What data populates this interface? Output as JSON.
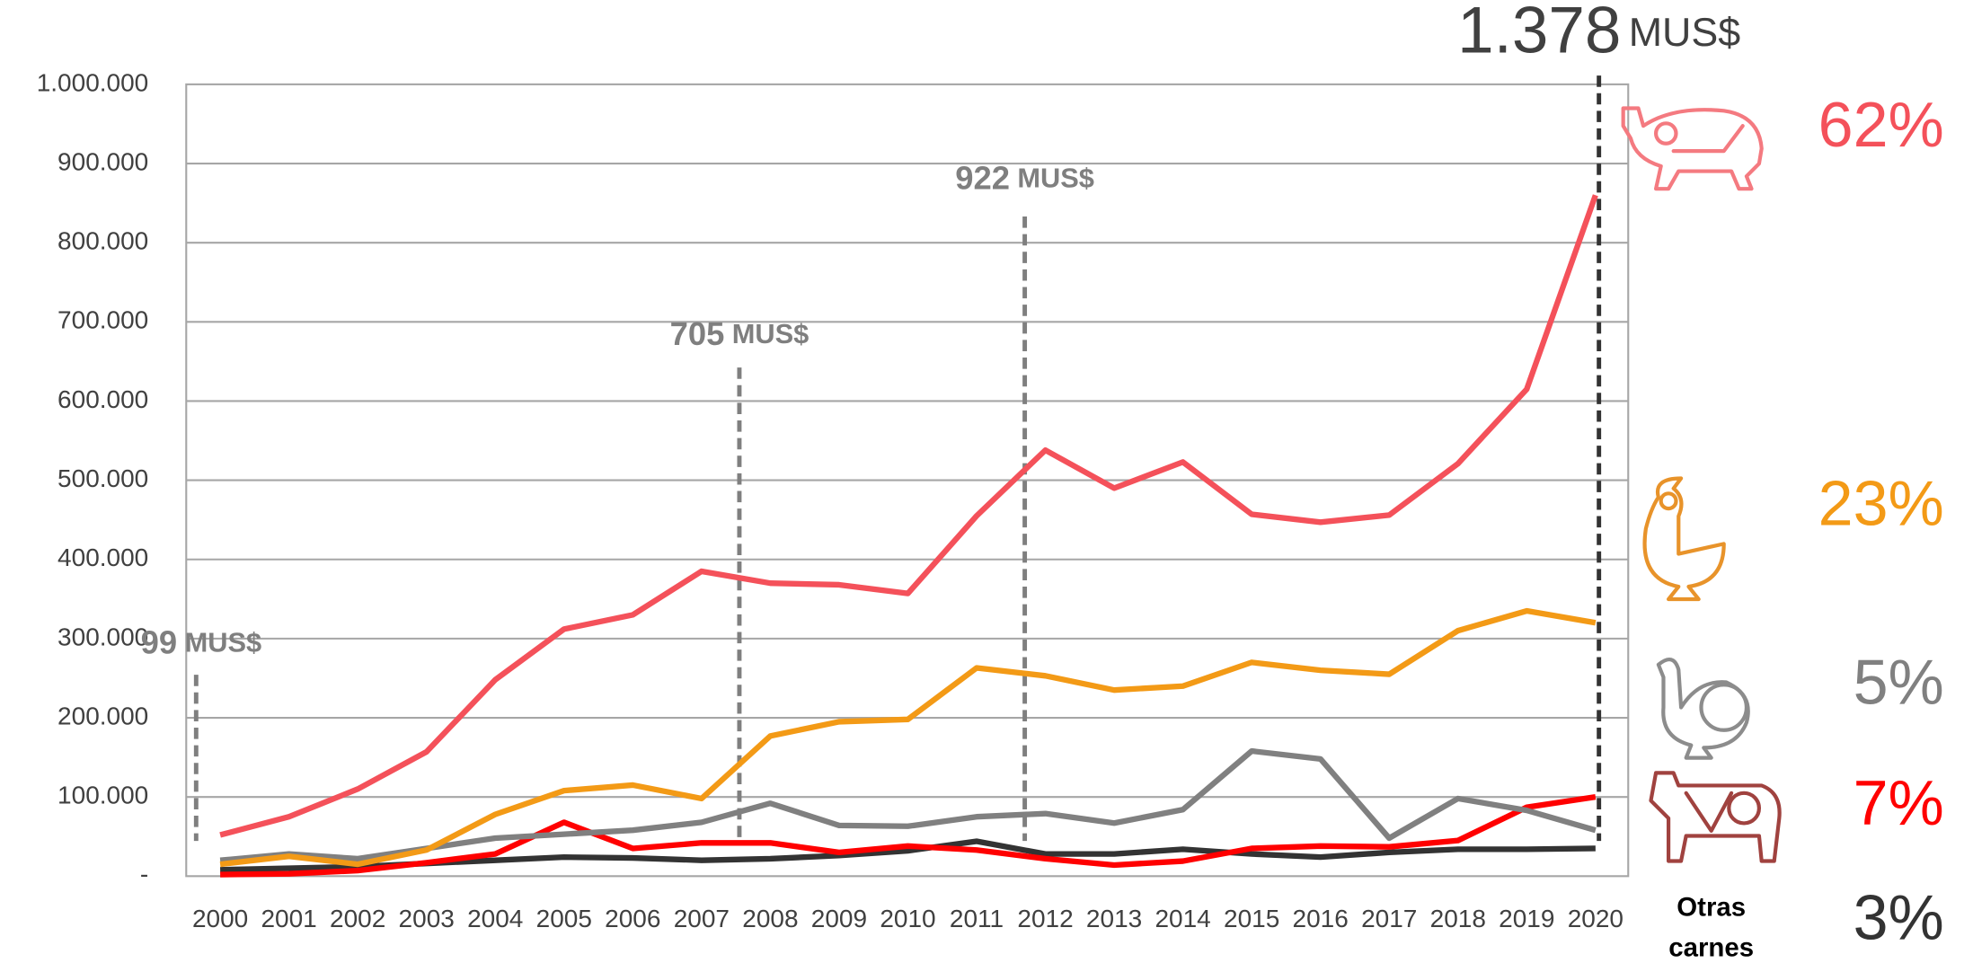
{
  "chart_data": {
    "type": "line",
    "categories": [
      "2000",
      "2001",
      "2002",
      "2003",
      "2004",
      "2005",
      "2006",
      "2007",
      "2008",
      "2009",
      "2010",
      "2011",
      "2012",
      "2013",
      "2014",
      "2015",
      "2016",
      "2017",
      "2018",
      "2019",
      "2020"
    ],
    "series": [
      {
        "color": "#f4515a",
        "share": "62%",
        "values": [
          52000,
          75000,
          110000,
          157000,
          248000,
          312000,
          330000,
          385000,
          370000,
          368000,
          357000,
          455000,
          538000,
          490000,
          523000,
          457000,
          447000,
          456000,
          521000,
          615000,
          860000
        ]
      },
      {
        "color": "#f39a16",
        "share": "23%",
        "values": [
          15000,
          25000,
          15000,
          33000,
          78000,
          108000,
          115000,
          98000,
          177000,
          195000,
          198000,
          263000,
          253000,
          235000,
          240000,
          270000,
          260000,
          255000,
          310000,
          335000,
          320000
        ]
      },
      {
        "color": "#808080",
        "share": "5%",
        "values": [
          20000,
          28000,
          22000,
          35000,
          48000,
          53000,
          58000,
          68000,
          92000,
          64000,
          63000,
          75000,
          79000,
          67000,
          84000,
          158000,
          148000,
          48000,
          98000,
          83000,
          58000
        ]
      },
      {
        "color": "#ff0000",
        "share": "7%",
        "values": [
          2000,
          3000,
          7000,
          17000,
          28000,
          68000,
          35000,
          42000,
          42000,
          30000,
          38000,
          33000,
          22000,
          14000,
          19000,
          35000,
          38000,
          37000,
          45000,
          87000,
          100000
        ]
      },
      {
        "color": "#333333",
        "share": "3%",
        "values": [
          8000,
          10000,
          12000,
          16000,
          20000,
          24000,
          23000,
          20000,
          22000,
          26000,
          32000,
          44000,
          28000,
          28000,
          34000,
          28000,
          24000,
          30000,
          34000,
          34000,
          35000
        ]
      }
    ],
    "other_label": [
      "Otras",
      "carnes"
    ],
    "ylim": [
      0,
      1000000
    ],
    "yticks": [
      {
        "value": 0,
        "label": "-"
      },
      {
        "value": 100000,
        "label": "100.000"
      },
      {
        "value": 200000,
        "label": "200.000"
      },
      {
        "value": 300000,
        "label": "300.000"
      },
      {
        "value": 400000,
        "label": "400.000"
      },
      {
        "value": 500000,
        "label": "500.000"
      },
      {
        "value": 600000,
        "label": "600.000"
      },
      {
        "value": 700000,
        "label": "700.000"
      },
      {
        "value": 800000,
        "label": "800.000"
      },
      {
        "value": 900000,
        "label": "900.000"
      },
      {
        "value": 1000000,
        "label": "1.000.000"
      }
    ],
    "grid": true,
    "annotations": [
      {
        "value": "99",
        "unit": "MUS$"
      },
      {
        "value": "705",
        "unit": "MUS$"
      },
      {
        "value": "922",
        "unit": "MUS$"
      },
      {
        "value": "1.378",
        "unit": "MUS$"
      }
    ]
  }
}
